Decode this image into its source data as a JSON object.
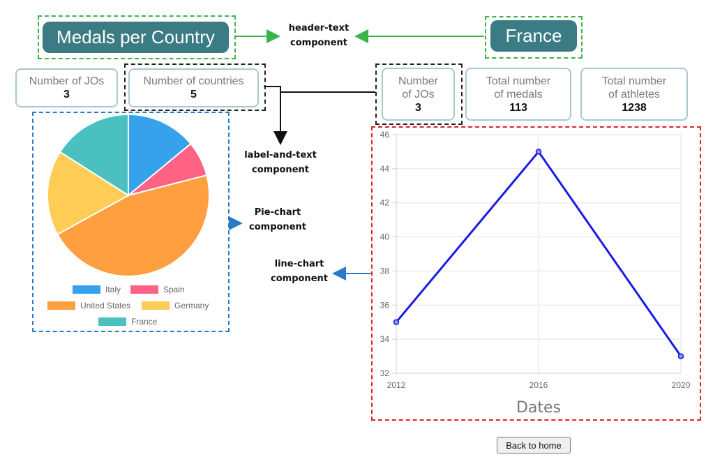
{
  "left_header": {
    "title": "Medals per Country"
  },
  "right_header": {
    "title": "France"
  },
  "annotations": {
    "header_text": [
      "header-text",
      "component"
    ],
    "label_text": [
      "label-and-text",
      "component"
    ],
    "pie_chart": [
      "Pie-chart",
      "component"
    ],
    "line_chart": [
      "line-chart",
      "component"
    ]
  },
  "left_cards": [
    {
      "label": [
        "Number of JOs"
      ],
      "value": "3"
    },
    {
      "label": [
        "Number of countries"
      ],
      "value": "5"
    }
  ],
  "right_cards": [
    {
      "label": [
        "Number",
        "of JOs"
      ],
      "value": "3"
    },
    {
      "label": [
        "Total number",
        "of medals"
      ],
      "value": "113"
    },
    {
      "label": [
        "Total number",
        "of athletes"
      ],
      "value": "1238"
    }
  ],
  "chart_data": [
    {
      "type": "pie",
      "categories": [
        "Italy",
        "Spain",
        "United States",
        "Germany",
        "France"
      ],
      "values": [
        14,
        7,
        46,
        17,
        16
      ],
      "colors": [
        "#36a2eb",
        "#ff6384",
        "#ff9f40",
        "#ffcd56",
        "#4bc0c0"
      ],
      "legend": "bottom"
    },
    {
      "type": "line",
      "x": [
        "2012",
        "2016",
        "2020"
      ],
      "series": [
        {
          "values": [
            35,
            45,
            33
          ],
          "color": "#1a1ae6"
        }
      ],
      "xlabel": "Dates",
      "ylabel": "",
      "ylim": [
        32,
        46
      ],
      "yticks": [
        "32",
        "34",
        "36",
        "38",
        "40",
        "42",
        "44",
        "46"
      ],
      "grid": true
    }
  ],
  "footer": {
    "back_label": "Back to home"
  },
  "colors": {
    "header_bg": "#3b7b83",
    "card_border": "#a9c7d1"
  }
}
